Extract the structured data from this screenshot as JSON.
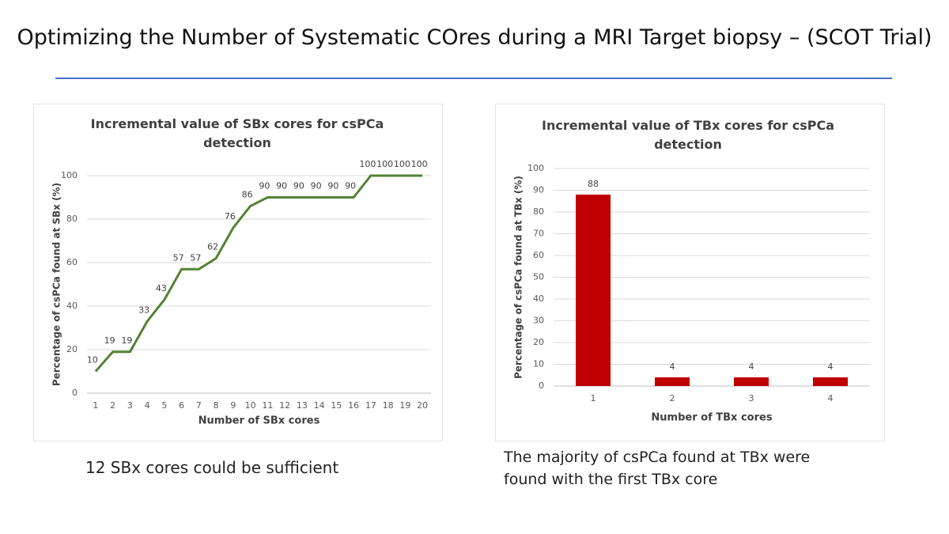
{
  "title": "Optimizing the Number of Systematic COres during a MRI Target biopsy – (SCOT Trial)",
  "left_caption": "12 SBx cores could be sufficient",
  "right_caption": "The majority of csPCa found at TBx were found with the first TBx core",
  "chart_data": [
    {
      "type": "line",
      "title": "Incremental value of SBx cores for csPCa detection",
      "x_label": "Number of SBx cores",
      "y_label": "Percentage of csPCa found at SBx (%)",
      "categories": [
        "1",
        "2",
        "3",
        "4",
        "5",
        "6",
        "7",
        "8",
        "9",
        "10",
        "11",
        "12",
        "13",
        "14",
        "15",
        "16",
        "17",
        "18",
        "19",
        "20"
      ],
      "values": [
        10,
        19,
        19,
        33,
        43,
        57,
        57,
        62,
        76,
        86,
        90,
        90,
        90,
        90,
        90,
        90,
        100,
        100,
        100,
        100
      ],
      "color": "#548235",
      "ylim": [
        0,
        100
      ],
      "yticks": [
        0,
        20,
        40,
        60,
        80,
        100
      ],
      "grid": true
    },
    {
      "type": "bar",
      "title": "Incremental value of TBx cores for csPCa detection",
      "x_label": "Number of TBx cores",
      "y_label": "Percentage of csPCa found at TBx (%)",
      "categories": [
        "1",
        "2",
        "3",
        "4"
      ],
      "values": [
        88,
        4,
        4,
        4
      ],
      "color": "#c00000",
      "ylim": [
        0,
        100
      ],
      "yticks": [
        0,
        10,
        20,
        30,
        40,
        50,
        60,
        70,
        80,
        90,
        100
      ],
      "grid": true
    }
  ]
}
